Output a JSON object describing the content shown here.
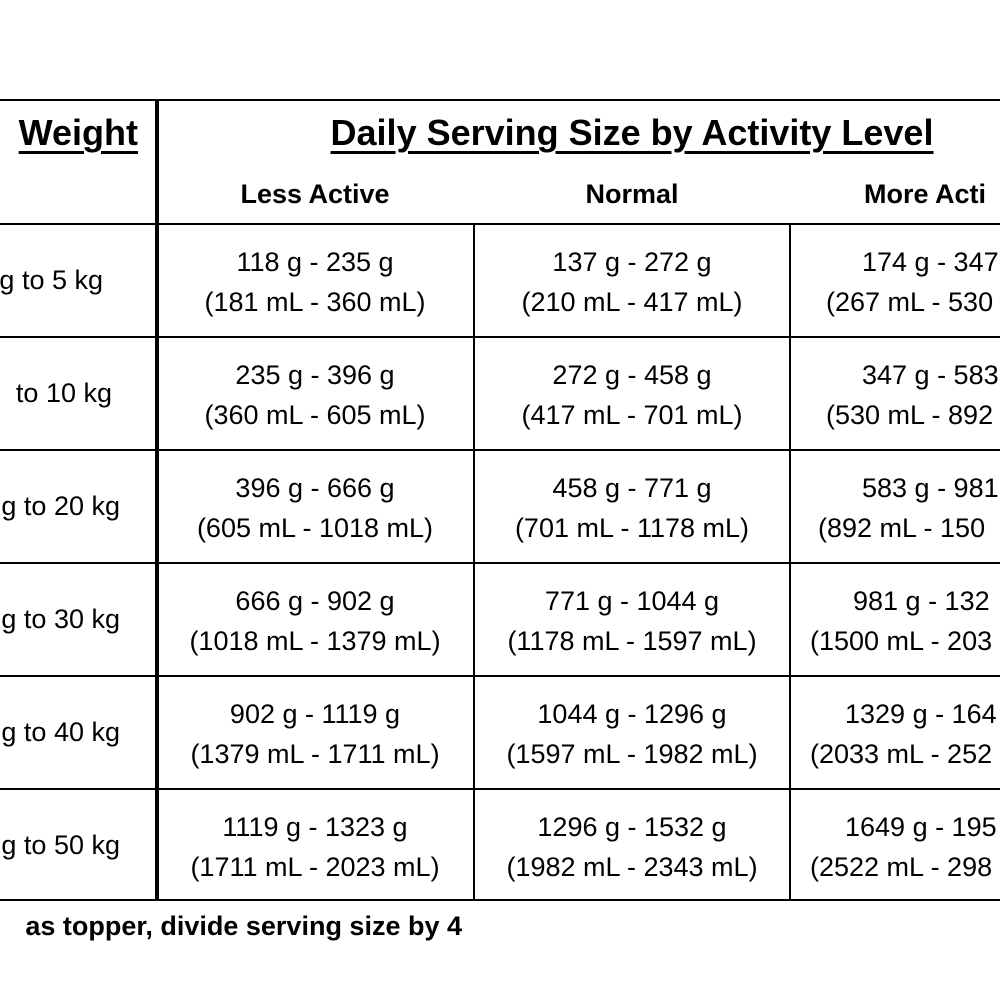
{
  "header": {
    "weight_title": "Weight",
    "daily_title": "Daily Serving Size by Activity Level",
    "columns": [
      "Less Active",
      "Normal",
      "More Acti"
    ]
  },
  "rows": [
    {
      "weight": "g to 5 kg",
      "less": [
        "118 g - 235 g",
        "(181 mL - 360 mL)"
      ],
      "normal": [
        "137 g - 272 g",
        "(210 mL - 417 mL)"
      ],
      "more": [
        "174 g - 347",
        "(267 mL - 530"
      ]
    },
    {
      "weight": "to 10 kg",
      "less": [
        "235 g - 396 g",
        "(360 mL - 605 mL)"
      ],
      "normal": [
        "272 g - 458 g",
        "(417 mL - 701 mL)"
      ],
      "more": [
        "347 g - 583",
        "(530 mL - 892"
      ]
    },
    {
      "weight": "g to 20 kg",
      "less": [
        "396 g - 666 g",
        "(605 mL - 1018 mL)"
      ],
      "normal": [
        "458 g - 771 g",
        "(701 mL - 1178 mL)"
      ],
      "more": [
        "583 g - 981",
        "(892 mL - 150"
      ]
    },
    {
      "weight": "g to 30 kg",
      "less": [
        "666 g - 902 g",
        "(1018 mL - 1379 mL)"
      ],
      "normal": [
        "771 g - 1044 g",
        "(1178 mL - 1597 mL)"
      ],
      "more": [
        "981 g - 132",
        "(1500 mL - 203"
      ]
    },
    {
      "weight": "g to 40 kg",
      "less": [
        "902 g - 1119 g",
        "(1379 mL - 1711 mL)"
      ],
      "normal": [
        "1044 g - 1296 g",
        "(1597 mL - 1982 mL)"
      ],
      "more": [
        "1329 g - 164",
        "(2033 mL - 252"
      ]
    },
    {
      "weight": "g to 50 kg",
      "less": [
        "1119 g - 1323 g",
        "(1711 mL - 2023 mL)"
      ],
      "normal": [
        "1296 g - 1532 g",
        "(1982 mL - 2343 mL)"
      ],
      "more": [
        "1649 g - 195",
        "(2522 mL - 298"
      ]
    }
  ],
  "footnote": "as topper, divide serving size by 4"
}
